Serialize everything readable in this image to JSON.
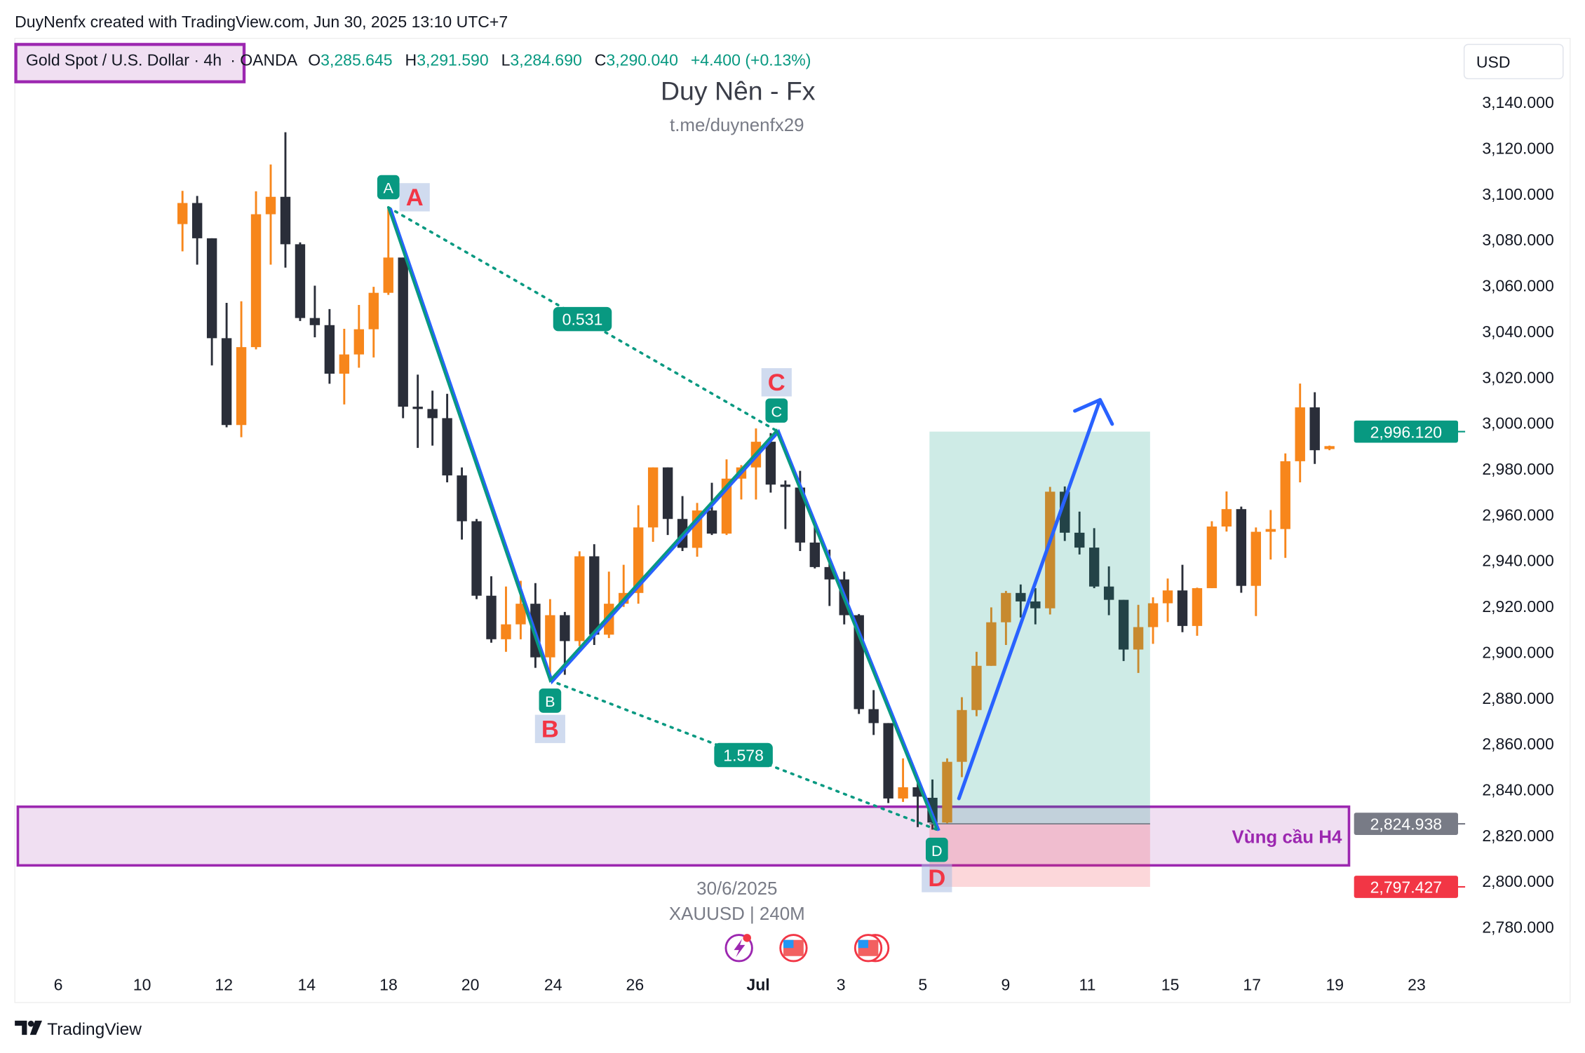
{
  "header": {
    "caption": "DuyNenfx created with TradingView.com, Jun 30, 2025 13:10 UTC+7"
  },
  "legend": {
    "symbol": "Gold Spot / U.S. Dollar · 4h",
    "exchange": "· OANDA",
    "o_label": "O",
    "o_value": "3,285.645",
    "h_label": "H",
    "h_value": "3,291.590",
    "l_label": "L",
    "l_value": "3,284.690",
    "c_label": "C",
    "c_value": "3,290.040",
    "change": "+4.400 (+0.13%)"
  },
  "watermark": {
    "title": "Duy Nên - Fx",
    "link": "t.me/duynenfx29",
    "date": "30/6/2025",
    "symbol": "XAUUSD | 240M"
  },
  "currency": "USD",
  "footer": {
    "brand": "TradingView"
  },
  "colors": {
    "up": "#f7861b",
    "down": "#2a2e39",
    "pattern": "#089981",
    "pattern_blue": "#2962ff",
    "zone": "#9c27b0",
    "target": "#089981",
    "stop": "#f23645",
    "entry": "#787b86"
  },
  "chart_data": {
    "type": "candlestick",
    "title": "Gold Spot / U.S. Dollar · 4h · OANDA",
    "ylim": [
      2770,
      3150
    ],
    "yticks": [
      "3,140.000",
      "3,120.000",
      "3,100.000",
      "3,080.000",
      "3,060.000",
      "3,040.000",
      "3,020.000",
      "3,000.000",
      "2,980.000",
      "2,960.000",
      "2,940.000",
      "2,920.000",
      "2,900.000",
      "2,880.000",
      "2,860.000",
      "2,840.000",
      "2,820.000",
      "2,800.000",
      "2,780.000"
    ],
    "ytick_values": [
      3140,
      3120,
      3100,
      3080,
      3060,
      3040,
      3020,
      3000,
      2980,
      2960,
      2940,
      2920,
      2900,
      2880,
      2860,
      2840,
      2820,
      2800,
      2780
    ],
    "xticks": [
      "6",
      "10",
      "12",
      "14",
      "18",
      "20",
      "24",
      "26",
      "Jul",
      "3",
      "5",
      "9",
      "11",
      "15",
      "17",
      "19",
      "23"
    ],
    "candles_ohlc": [
      [
        3086.7,
        3101.2,
        3074.8,
        3095.9
      ],
      [
        3095.9,
        3099,
        3069,
        3080.5
      ],
      [
        3080.5,
        3080.5,
        3025,
        3036.9
      ],
      [
        3036.9,
        3052.3,
        2998,
        2999
      ],
      [
        2999,
        3053,
        2993.7,
        3033
      ],
      [
        3033,
        3101,
        3032,
        3091
      ],
      [
        3091,
        3112.7,
        3069,
        3098.6
      ],
      [
        3098.6,
        3126.8,
        3067.7,
        3077.9
      ],
      [
        3077.9,
        3078.7,
        3044.4,
        3045.7
      ],
      [
        3045.7,
        3059.8,
        3037.3,
        3042.6
      ],
      [
        3042.6,
        3049.6,
        3017,
        3021.4
      ],
      [
        3021.4,
        3041,
        3008,
        3029.8
      ],
      [
        3029.8,
        3051.4,
        3024,
        3040.8
      ],
      [
        3040.8,
        3059.3,
        3028.5,
        3056.7
      ],
      [
        3056.7,
        3094,
        3055.8,
        3072.1
      ],
      [
        3072.1,
        3072.1,
        3002,
        3007
      ],
      [
        3007,
        3021,
        2989,
        3006
      ],
      [
        3006,
        3014,
        2990,
        3002
      ],
      [
        3002,
        3012.6,
        2974,
        2977
      ],
      [
        2977,
        2980.5,
        2949,
        2957
      ],
      [
        2957,
        2958,
        2923,
        2924.5
      ],
      [
        2924.5,
        2933,
        2904,
        2905.5
      ],
      [
        2905.5,
        2928.5,
        2900,
        2912
      ],
      [
        2912,
        2931,
        2905.5,
        2921
      ],
      [
        2921,
        2930,
        2893,
        2897.6
      ],
      [
        2897.6,
        2923,
        2887.5,
        2916
      ],
      [
        2916,
        2917.4,
        2890,
        2904.7
      ],
      [
        2904.7,
        2943.9,
        2902.5,
        2941.7
      ],
      [
        2941.7,
        2947,
        2903,
        2907.5
      ],
      [
        2907.5,
        2935,
        2906,
        2921
      ],
      [
        2921,
        2938,
        2919.6,
        2925.7
      ],
      [
        2925.7,
        2964,
        2921,
        2954.3
      ],
      [
        2954.3,
        2980.5,
        2948,
        2980.5
      ],
      [
        2980.5,
        2980.5,
        2951,
        2958
      ],
      [
        2958,
        2968,
        2944,
        2945.4
      ],
      [
        2945.4,
        2965,
        2941.5,
        2961.7
      ],
      [
        2961.7,
        2973.8,
        2951,
        2951.6
      ],
      [
        2951.6,
        2984,
        2951,
        2975.6
      ],
      [
        2975.6,
        2981.5,
        2966.5,
        2980.5
      ],
      [
        2980.5,
        2997.5,
        2966.5,
        2991.7
      ],
      [
        2991.7,
        2995.5,
        2969.5,
        2973
      ],
      [
        2973,
        2974.8,
        2953.6,
        2972
      ],
      [
        2971.7,
        2979,
        2944,
        2947.7
      ],
      [
        2947.7,
        2955,
        2936.4,
        2937
      ],
      [
        2937,
        2944.6,
        2920,
        2931.6
      ],
      [
        2931.6,
        2935,
        2912,
        2916
      ],
      [
        2916,
        2916.5,
        2872.9,
        2875
      ],
      [
        2875,
        2883.3,
        2863.7,
        2868.9
      ],
      [
        2868.9,
        2868.9,
        2834,
        2836
      ],
      [
        2836,
        2853.5,
        2834.5,
        2840.9
      ],
      [
        2840.9,
        2842.9,
        2823.5,
        2836.8
      ],
      [
        2836.3,
        2844.3,
        2822.4,
        2825.5
      ],
      [
        2825.5,
        2853.5,
        2825,
        2852
      ],
      [
        2852,
        2880.2,
        2845.3,
        2874.6
      ],
      [
        2874.6,
        2900,
        2871.9,
        2893.9
      ],
      [
        2893.9,
        2919.4,
        2893.9,
        2912.9
      ],
      [
        2912.9,
        2926.6,
        2903,
        2925.7
      ],
      [
        2925.7,
        2929.4,
        2915,
        2922
      ],
      [
        2922,
        2927.8,
        2912,
        2919
      ],
      [
        2919,
        2972,
        2916.3,
        2969.9
      ],
      [
        2969.9,
        2972.2,
        2948.4,
        2952
      ],
      [
        2952,
        2961.2,
        2942.5,
        2945.5
      ],
      [
        2945.5,
        2954,
        2927.8,
        2928.5
      ],
      [
        2928.5,
        2937.3,
        2916,
        2922.7
      ],
      [
        2922.7,
        2922.7,
        2896,
        2901
      ],
      [
        2901,
        2920.5,
        2890.8,
        2910.8
      ],
      [
        2910.8,
        2923.8,
        2903.5,
        2921.2
      ],
      [
        2921.2,
        2932,
        2913,
        2926.8
      ],
      [
        2926.8,
        2938,
        2908.6,
        2911.3
      ],
      [
        2911.3,
        2928,
        2907,
        2927.8
      ],
      [
        2927.8,
        2957,
        2927.8,
        2954.7
      ],
      [
        2954.7,
        2970,
        2952.5,
        2962.3
      ],
      [
        2962.3,
        2963.4,
        2925.8,
        2928.8
      ],
      [
        2928.8,
        2954.3,
        2915.6,
        2952.4
      ],
      [
        2952.4,
        2961.9,
        2940.3,
        2953.6
      ],
      [
        2953.6,
        2986.6,
        2941,
        2983.2
      ],
      [
        2983.2,
        3017.1,
        2974,
        3006.7
      ],
      [
        3006.7,
        3013.3,
        2982,
        2988
      ],
      [
        2988.5,
        2990,
        2988,
        2989.8
      ]
    ],
    "harmonic_pattern": {
      "points": [
        {
          "label": "A",
          "bar": 14,
          "price": 3094
        },
        {
          "label": "B",
          "bar": 25,
          "price": 2887.5
        },
        {
          "label": "C",
          "bar": 40.4,
          "price": 2996.5
        },
        {
          "label": "D",
          "bar": 51.3,
          "price": 2822.4
        }
      ],
      "ratios": [
        "0.531",
        "1.578"
      ]
    },
    "projection_arrow": {
      "from_bar": 52.8,
      "from_price": 2836,
      "to_bar": 62.4,
      "to_price": 3010
    },
    "demand_zone": {
      "label": "Vùng cầu H4",
      "top": 2832.4,
      "bottom": 2806.8
    },
    "long_position": {
      "start_bar": 50.8,
      "end_bar": 65.8,
      "target": 2996.12,
      "entry": 2824.938,
      "stop": 2797.427
    },
    "price_labels": {
      "target": "2,996.120",
      "entry": "2,824.938",
      "stop": "2,797.427"
    }
  }
}
